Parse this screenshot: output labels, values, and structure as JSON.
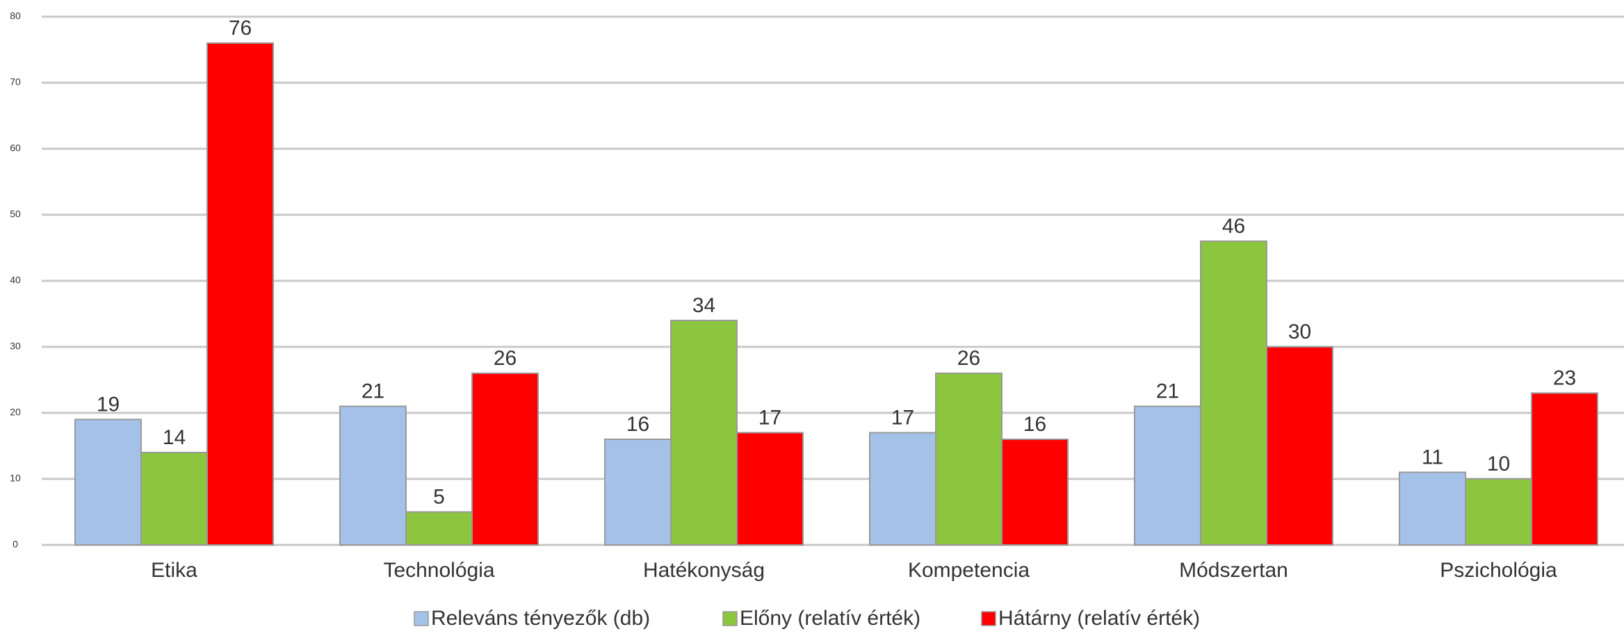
{
  "chart_data": {
    "type": "bar",
    "categories": [
      "Etika",
      "Technológia",
      "Hatékonyság",
      "Kompetencia",
      "Módszertan",
      "Pszichológia"
    ],
    "series": [
      {
        "name": "Releváns tényezők (db)",
        "color": "#a4c2e8",
        "values": [
          19,
          21,
          16,
          17,
          21,
          11
        ]
      },
      {
        "name": "Előny (relatív érték)",
        "color": "#8cc63f",
        "values": [
          14,
          5,
          34,
          26,
          46,
          10
        ]
      },
      {
        "name": "Hátárny (relatív érték)",
        "color": "#ff0000",
        "values": [
          76,
          26,
          17,
          16,
          30,
          23
        ]
      }
    ],
    "ylim": [
      0,
      80
    ],
    "yticks": [
      0,
      10,
      20,
      30,
      40,
      50,
      60,
      70,
      80
    ],
    "grid": true,
    "legend": "bottom"
  }
}
